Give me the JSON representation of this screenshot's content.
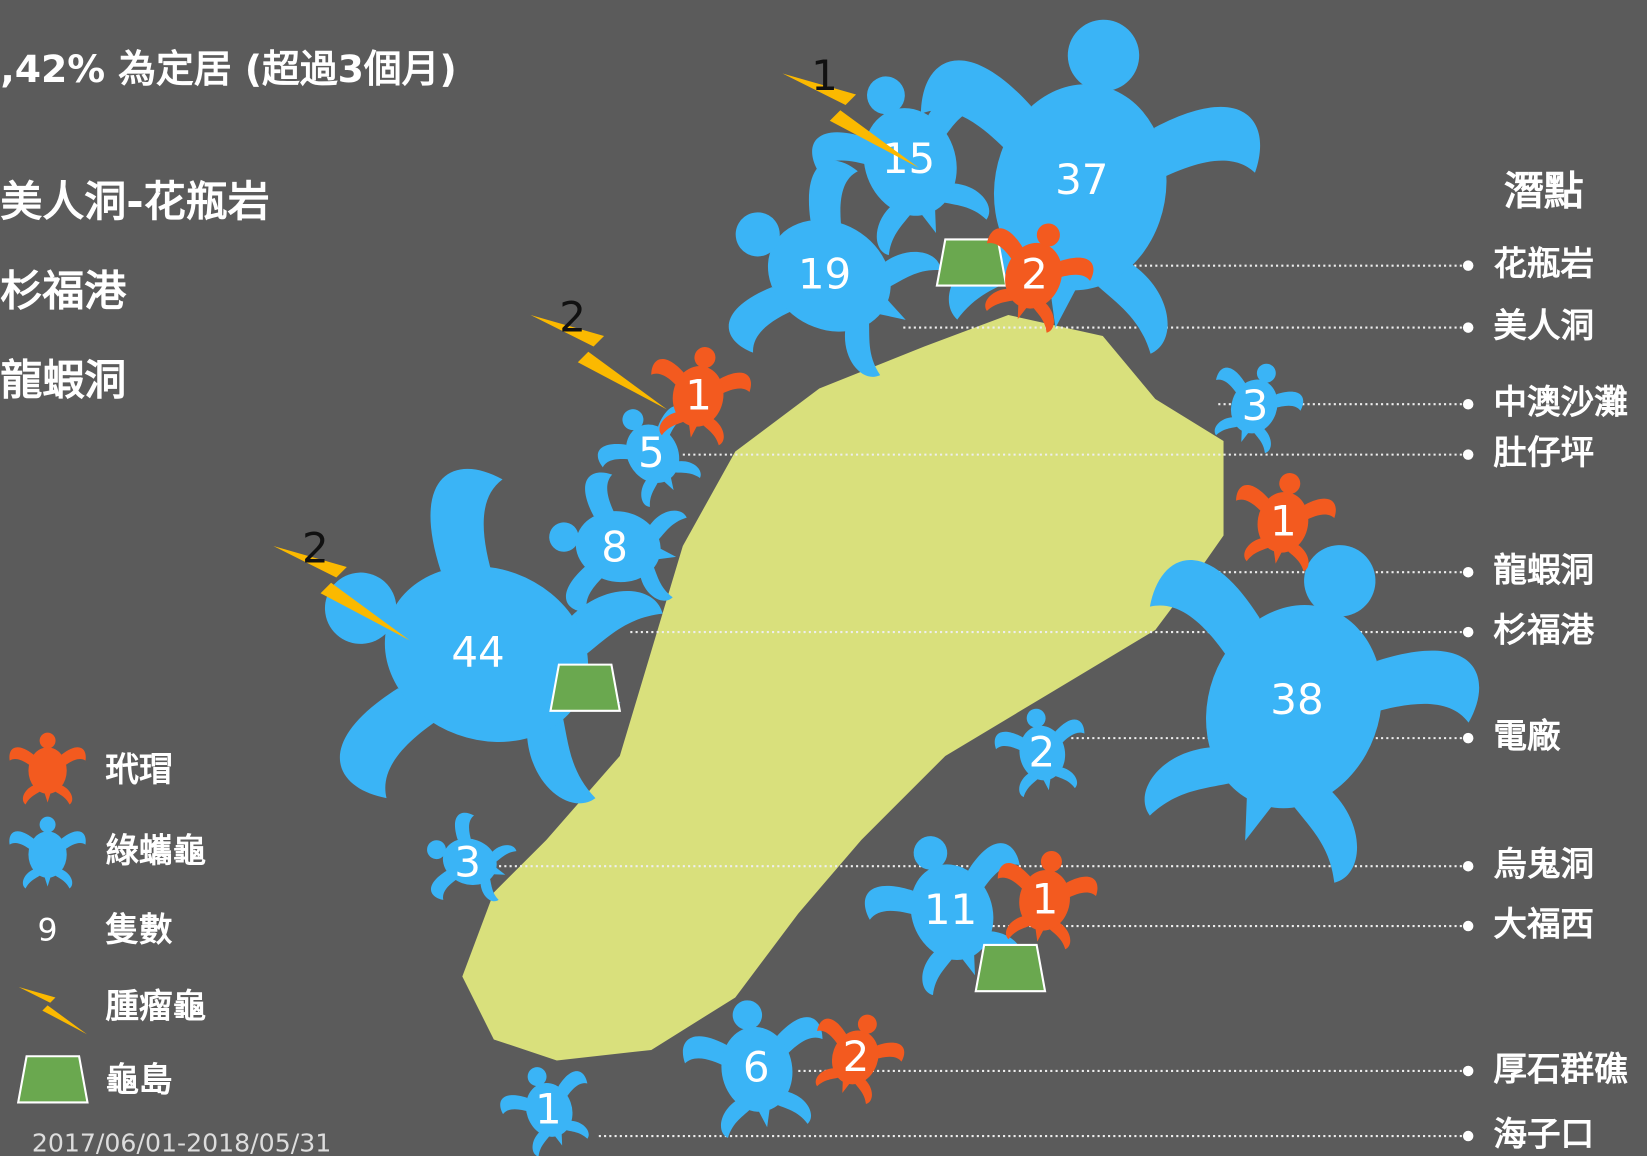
{
  "header": {
    "title": ",42% 為定居 (超過3個月)",
    "sites": [
      "美人洞-花瓶岩",
      "杉福港",
      "龍蝦洞"
    ]
  },
  "dive_spots": {
    "title": "潛點",
    "labels": [
      "花瓶岩",
      "美人洞",
      "中澳沙灘",
      "肚仔坪",
      "龍蝦洞",
      "杉福港",
      "電廠",
      "烏鬼洞",
      "大福西",
      "厚石群礁",
      "海子口"
    ]
  },
  "green_turtles": [
    15,
    37,
    19,
    5,
    8,
    44,
    3,
    38,
    2,
    3,
    11,
    6,
    1
  ],
  "hawksbills": [
    2,
    1,
    1,
    1,
    2
  ],
  "tumor_turtles": [
    1,
    2,
    2
  ],
  "legend": {
    "hawksbill": "玳瑁",
    "green": "綠蠵龜",
    "count_sample": 9,
    "count": "隻數",
    "tumor": "腫瘤龜",
    "island": "龜島"
  },
  "date": "2017/06/01-2018/05/31"
}
